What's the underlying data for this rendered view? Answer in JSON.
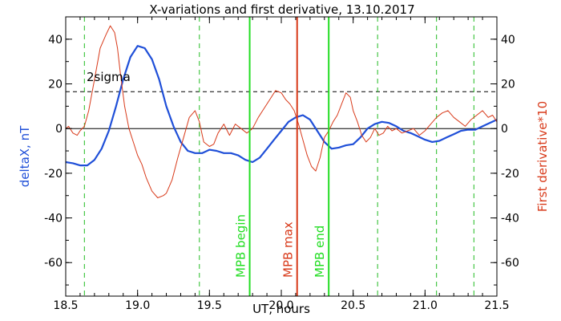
{
  "chart_data": {
    "type": "line",
    "title": "X-variations and first derivative, 13.10.2017",
    "xlabel": "UT, hours",
    "ylabel_left": "deltaX, nT",
    "ylabel_right": "First derivative*10",
    "xlim": [
      18.5,
      21.5
    ],
    "ylim_left": [
      -75,
      50
    ],
    "ylim_right": [
      -75,
      50
    ],
    "x_ticks": [
      "18.5",
      "19.0",
      "19.5",
      "20.0",
      "20.5",
      "21.0",
      "21.5"
    ],
    "x_tick_values": [
      18.5,
      19.0,
      19.5,
      20.0,
      20.5,
      21.0,
      21.5
    ],
    "y_ticks": [
      "40",
      "20",
      "0",
      "-20",
      "-40",
      "-60"
    ],
    "y_tick_values": [
      40,
      20,
      0,
      -20,
      -40,
      -60
    ],
    "colors": {
      "deltax": "#1f4fd8",
      "derivative": "#d83a1a",
      "mpb_green": "#22dd22",
      "mpb_max": "#d83a1a",
      "dashed_green": "#22bb22"
    },
    "sigma_level": 16.5,
    "sigma_label": "2sigma",
    "dashed_green_lines": [
      18.63,
      19.43,
      20.67,
      21.08,
      21.34
    ],
    "markers": [
      {
        "label": "MPB begin",
        "x": 19.78,
        "color": "#22dd22"
      },
      {
        "label": "MPB max",
        "x": 20.11,
        "color": "#d83a1a"
      },
      {
        "label": "MPB end",
        "x": 20.33,
        "color": "#22dd22"
      }
    ],
    "series": [
      {
        "key": "deltax",
        "color": "#1f4fd8",
        "x": [
          18.5,
          18.55,
          18.6,
          18.65,
          18.7,
          18.75,
          18.8,
          18.85,
          18.9,
          18.95,
          19.0,
          19.05,
          19.1,
          19.15,
          19.2,
          19.25,
          19.3,
          19.35,
          19.4,
          19.45,
          19.5,
          19.55,
          19.6,
          19.65,
          19.7,
          19.75,
          19.8,
          19.85,
          19.9,
          19.95,
          20.0,
          20.05,
          20.1,
          20.15,
          20.2,
          20.25,
          20.3,
          20.35,
          20.4,
          20.45,
          20.5,
          20.55,
          20.6,
          20.65,
          20.7,
          20.75,
          20.8,
          20.85,
          20.9,
          20.95,
          21.0,
          21.05,
          21.1,
          21.15,
          21.2,
          21.25,
          21.3,
          21.35,
          21.4,
          21.45,
          21.5
        ],
        "y": [
          -15,
          -15.5,
          -16.5,
          -16.5,
          -14,
          -9,
          -1,
          10,
          22,
          32,
          37,
          36,
          31,
          22,
          10,
          1,
          -6,
          -10,
          -11,
          -11,
          -9.5,
          -10,
          -11,
          -11,
          -12,
          -14,
          -15,
          -13,
          -9,
          -5,
          -1,
          3,
          5,
          6,
          4,
          -1,
          -6,
          -9,
          -8.5,
          -7.5,
          -7,
          -4,
          0,
          2,
          3,
          2.5,
          1,
          -1,
          -2,
          -3.5,
          -5,
          -6,
          -5.5,
          -4,
          -2.5,
          -1,
          -0.5,
          -0.5,
          1,
          2.5,
          4
        ]
      },
      {
        "key": "derivative",
        "color": "#d83a1a",
        "x": [
          18.5,
          18.52,
          18.55,
          18.58,
          18.6,
          18.63,
          18.66,
          18.7,
          18.74,
          18.78,
          18.81,
          18.84,
          18.86,
          18.88,
          18.91,
          18.94,
          18.97,
          19.0,
          19.03,
          19.06,
          19.1,
          19.14,
          19.18,
          19.2,
          19.24,
          19.28,
          19.32,
          19.36,
          19.4,
          19.43,
          19.46,
          19.5,
          19.53,
          19.56,
          19.6,
          19.64,
          19.68,
          19.72,
          19.76,
          19.8,
          19.84,
          19.88,
          19.92,
          19.96,
          20.0,
          20.03,
          20.06,
          20.09,
          20.12,
          20.15,
          20.18,
          20.21,
          20.24,
          20.27,
          20.3,
          20.33,
          20.36,
          20.39,
          20.42,
          20.45,
          20.48,
          20.5,
          20.53,
          20.56,
          20.59,
          20.62,
          20.65,
          20.68,
          20.71,
          20.74,
          20.77,
          20.8,
          20.84,
          20.88,
          20.92,
          20.96,
          21.0,
          21.04,
          21.08,
          21.12,
          21.16,
          21.2,
          21.24,
          21.28,
          21.32,
          21.36,
          21.4,
          21.44,
          21.47,
          21.5
        ],
        "y": [
          0,
          1,
          -2,
          -3,
          -1,
          1,
          8,
          22,
          36,
          42,
          46,
          43,
          36,
          25,
          10,
          0,
          -6,
          -12,
          -16,
          -22,
          -28,
          -31,
          -30,
          -29,
          -23,
          -13,
          -4,
          5,
          8,
          3,
          -6,
          -8,
          -7,
          -2,
          2,
          -3,
          2,
          0,
          -2,
          0,
          5,
          9,
          13,
          17,
          16,
          13,
          11,
          8,
          2,
          -5,
          -12,
          -17,
          -19,
          -13,
          -4,
          -1,
          3,
          6,
          11,
          16,
          14,
          8,
          3,
          -3,
          -6,
          -4,
          0,
          -3,
          -2,
          1,
          -1,
          0,
          -2,
          -1,
          0,
          -3,
          -1,
          2,
          5,
          7,
          8,
          5,
          3,
          1,
          4,
          6,
          8,
          5,
          6,
          3
        ]
      }
    ]
  }
}
